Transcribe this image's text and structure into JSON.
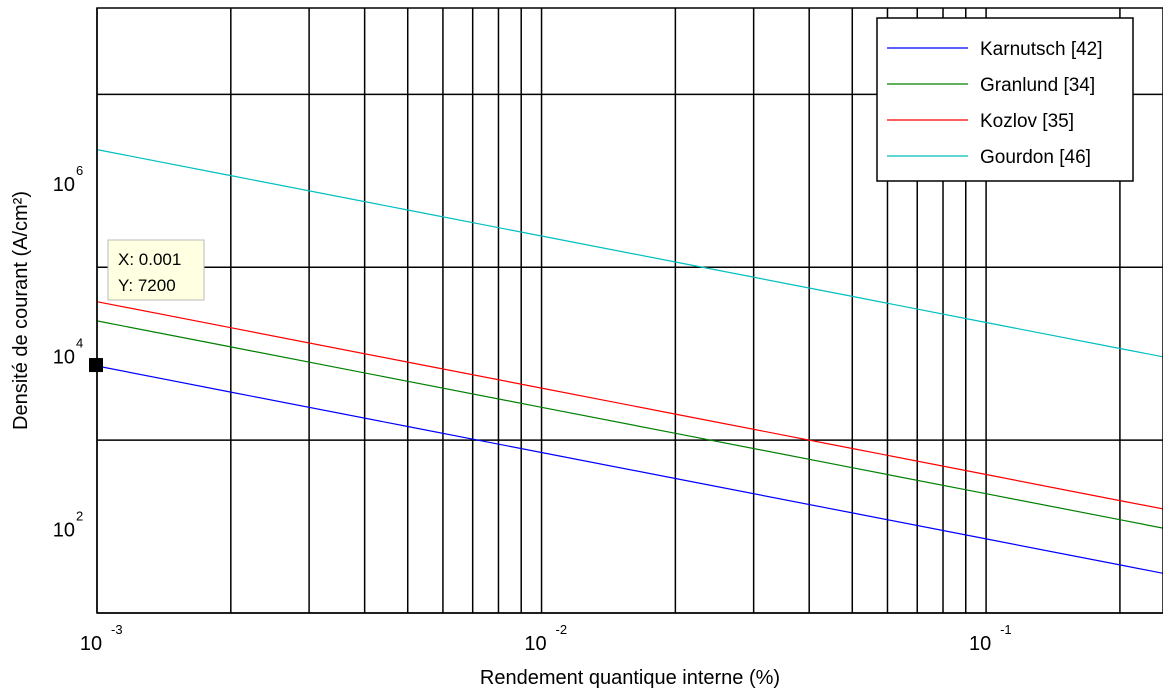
{
  "chart_data": {
    "type": "line",
    "title": "",
    "xlabel": "Rendement quantique interne (%)",
    "ylabel": "Densité de courant (A/cm²)",
    "x_scale": "log",
    "y_scale": "log",
    "xlim": [
      0.001,
      0.25
    ],
    "ylim": [
      10,
      100000000
    ],
    "grid": true,
    "legend_position": "top-right",
    "x_ticks": [
      {
        "base": "10",
        "exp": "-3",
        "value": 0.001
      },
      {
        "base": "10",
        "exp": "-2",
        "value": 0.01
      },
      {
        "base": "10",
        "exp": "-1",
        "value": 0.1
      }
    ],
    "y_ticks": [
      {
        "base": "10",
        "exp": "2",
        "value": 100
      },
      {
        "base": "10",
        "exp": "4",
        "value": 10000
      },
      {
        "base": "10",
        "exp": "6",
        "value": 1000000
      }
    ],
    "x": [
      0.001,
      0.002,
      0.005,
      0.01,
      0.02,
      0.05,
      0.1,
      0.2,
      0.25
    ],
    "series": [
      {
        "name": "Karnutsch [42]",
        "color": "#0000ff",
        "values": [
          7200,
          3600,
          1440,
          720,
          360,
          144,
          72,
          36,
          28.8
        ]
      },
      {
        "name": "Granlund [34]",
        "color": "#008000",
        "values": [
          24000,
          12000,
          4800,
          2400,
          1200,
          480,
          240,
          120,
          96
        ]
      },
      {
        "name": "Kozlov [35]",
        "color": "#ff0000",
        "values": [
          40000,
          20000,
          8000,
          4000,
          2000,
          800,
          400,
          200,
          160
        ]
      },
      {
        "name": "Gourdon [46]",
        "color": "#00bfbf",
        "values": [
          2300000,
          1150000,
          460000,
          230000,
          115000,
          46000,
          23000,
          11500,
          9200
        ]
      }
    ],
    "datatip": {
      "x_text": "X: 0.001",
      "y_text": "Y: 7200",
      "x": 0.001,
      "y": 7200
    }
  }
}
